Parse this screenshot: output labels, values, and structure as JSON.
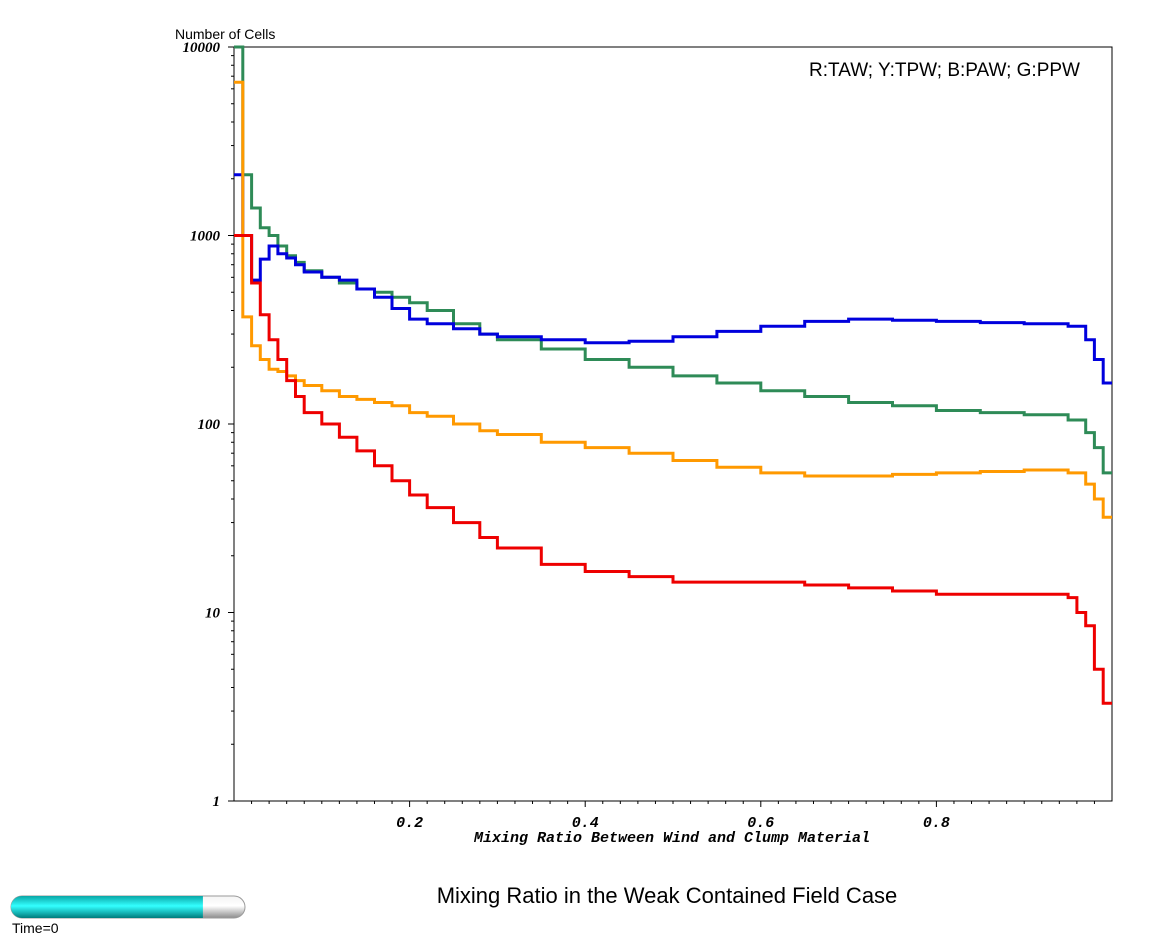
{
  "title": "Mixing Ratio in the Weak Contained Field Case",
  "time_label": "Time=0",
  "time_progress": 0.82,
  "chart_data": {
    "type": "line",
    "step": true,
    "title": "Mixing Ratio in the Weak Contained Field Case",
    "xlabel": "Mixing Ratio Between Wind and Clump Material",
    "ylabel": "Number of Cells",
    "xlim": [
      0,
      1
    ],
    "ylim": [
      1,
      10000
    ],
    "yscale": "log",
    "x_ticks": [
      0.2,
      0.4,
      0.6,
      0.8
    ],
    "x_tick_labels": [
      "0.2",
      "0.4",
      "0.6",
      "0.8"
    ],
    "y_ticks": [
      1,
      10,
      100,
      1000,
      10000
    ],
    "y_tick_labels": [
      "1",
      "10",
      "100",
      "1000",
      "10000"
    ],
    "legend_text": "R:TAW; Y:TPW; B:PAW; G:PPW",
    "legend_position": "top-right",
    "grid": false,
    "series": [
      {
        "name": "PPW",
        "color": "#2e8b57",
        "x": [
          0.0,
          0.01,
          0.02,
          0.03,
          0.04,
          0.05,
          0.06,
          0.07,
          0.08,
          0.1,
          0.12,
          0.14,
          0.16,
          0.18,
          0.2,
          0.22,
          0.25,
          0.28,
          0.3,
          0.35,
          0.4,
          0.45,
          0.5,
          0.55,
          0.6,
          0.65,
          0.7,
          0.75,
          0.8,
          0.85,
          0.9,
          0.95,
          0.97,
          0.98,
          0.99
        ],
        "y": [
          10000,
          2100,
          1400,
          1100,
          1000,
          880,
          780,
          720,
          650,
          600,
          560,
          520,
          500,
          470,
          440,
          400,
          340,
          300,
          280,
          250,
          220,
          200,
          180,
          165,
          150,
          140,
          130,
          125,
          118,
          115,
          112,
          105,
          90,
          75,
          55
        ]
      },
      {
        "name": "PAW",
        "color": "#0000dd",
        "x": [
          0.0,
          0.01,
          0.02,
          0.03,
          0.04,
          0.05,
          0.06,
          0.07,
          0.08,
          0.1,
          0.12,
          0.14,
          0.16,
          0.18,
          0.2,
          0.22,
          0.25,
          0.28,
          0.3,
          0.35,
          0.4,
          0.45,
          0.5,
          0.55,
          0.6,
          0.65,
          0.7,
          0.75,
          0.8,
          0.85,
          0.9,
          0.95,
          0.97,
          0.98,
          0.99
        ],
        "y": [
          2100,
          1000,
          580,
          750,
          880,
          800,
          760,
          700,
          640,
          600,
          580,
          520,
          470,
          410,
          360,
          340,
          320,
          300,
          290,
          280,
          270,
          275,
          290,
          310,
          330,
          350,
          360,
          355,
          350,
          345,
          340,
          330,
          280,
          220,
          165
        ]
      },
      {
        "name": "TPW",
        "color": "#ff9900",
        "x": [
          0.0,
          0.01,
          0.02,
          0.03,
          0.04,
          0.05,
          0.06,
          0.07,
          0.08,
          0.1,
          0.12,
          0.14,
          0.16,
          0.18,
          0.2,
          0.22,
          0.25,
          0.28,
          0.3,
          0.35,
          0.4,
          0.45,
          0.5,
          0.55,
          0.6,
          0.65,
          0.7,
          0.75,
          0.8,
          0.85,
          0.9,
          0.95,
          0.97,
          0.98,
          0.99
        ],
        "y": [
          6500,
          370,
          260,
          220,
          195,
          190,
          180,
          170,
          160,
          150,
          140,
          135,
          130,
          125,
          115,
          110,
          100,
          92,
          88,
          80,
          75,
          70,
          64,
          59,
          55,
          53,
          53,
          54,
          55,
          56,
          57,
          55,
          48,
          40,
          32
        ]
      },
      {
        "name": "TAW",
        "color": "#ee0000",
        "x": [
          0.0,
          0.01,
          0.02,
          0.03,
          0.04,
          0.05,
          0.06,
          0.07,
          0.08,
          0.1,
          0.12,
          0.14,
          0.16,
          0.18,
          0.2,
          0.22,
          0.25,
          0.28,
          0.3,
          0.35,
          0.4,
          0.45,
          0.5,
          0.55,
          0.6,
          0.65,
          0.7,
          0.75,
          0.8,
          0.85,
          0.9,
          0.95,
          0.96,
          0.97,
          0.98,
          0.99
        ],
        "y": [
          1000,
          1000,
          560,
          380,
          280,
          220,
          170,
          140,
          115,
          100,
          85,
          72,
          60,
          50,
          42,
          36,
          30,
          25,
          22,
          18,
          16.5,
          15.5,
          14.5,
          14.5,
          14.5,
          14,
          13.5,
          13,
          12.5,
          12.5,
          12.5,
          12,
          10,
          8.5,
          5,
          3.3
        ]
      }
    ]
  }
}
